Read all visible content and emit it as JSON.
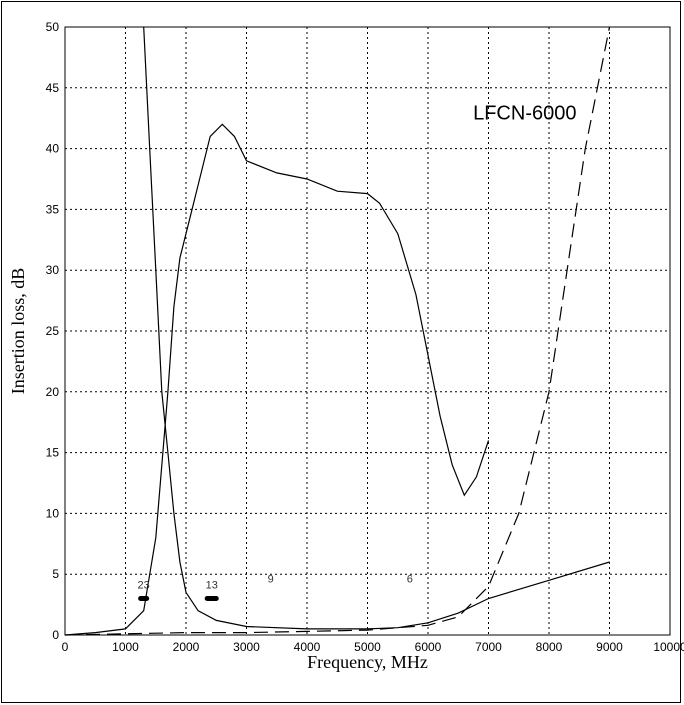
{
  "chart_data": {
    "type": "line",
    "xlabel": "Frequency, MHz",
    "ylabel": "Insertion loss, dB",
    "annotation": "LFCN-6000",
    "xlim": [
      0,
      10000
    ],
    "ylim": [
      0,
      50
    ],
    "x_ticks": [
      0,
      1000,
      2000,
      3000,
      4000,
      5000,
      6000,
      7000,
      8000,
      9000,
      10000
    ],
    "y_ticks": [
      0,
      5,
      10,
      15,
      20,
      25,
      30,
      35,
      40,
      45,
      50
    ],
    "grid": true,
    "series": [
      {
        "style": "solid",
        "points": [
          [
            1300,
            50
          ],
          [
            1400,
            40
          ],
          [
            1500,
            30
          ],
          [
            1600,
            20
          ],
          [
            1700,
            15
          ],
          [
            1800,
            10
          ],
          [
            1900,
            6
          ],
          [
            2000,
            3.5
          ],
          [
            2200,
            2
          ],
          [
            2500,
            1.2
          ],
          [
            3000,
            0.7
          ],
          [
            4000,
            0.5
          ],
          [
            5000,
            0.5
          ],
          [
            5500,
            0.6
          ],
          [
            6000,
            1
          ],
          [
            6500,
            1.8
          ],
          [
            7000,
            3
          ],
          [
            8000,
            4.5
          ],
          [
            9000,
            6
          ]
        ]
      },
      {
        "style": "solid",
        "points": [
          [
            0,
            0
          ],
          [
            500,
            0.2
          ],
          [
            1000,
            0.5
          ],
          [
            1300,
            2
          ],
          [
            1500,
            8
          ],
          [
            1700,
            20
          ],
          [
            1800,
            27
          ],
          [
            1900,
            31
          ],
          [
            2000,
            33
          ],
          [
            2200,
            37
          ],
          [
            2400,
            41
          ],
          [
            2600,
            42
          ],
          [
            2800,
            41
          ],
          [
            3000,
            39
          ],
          [
            3500,
            38
          ],
          [
            4000,
            37.5
          ],
          [
            4500,
            36.5
          ],
          [
            5000,
            36.3
          ],
          [
            5200,
            35.5
          ],
          [
            5500,
            33
          ],
          [
            5800,
            28
          ],
          [
            6000,
            23
          ],
          [
            6200,
            18
          ],
          [
            6400,
            14
          ],
          [
            6600,
            11.5
          ],
          [
            6800,
            13
          ],
          [
            7000,
            16
          ]
        ]
      },
      {
        "style": "dashed",
        "points": [
          [
            0,
            0
          ],
          [
            1000,
            0.1
          ],
          [
            2000,
            0.2
          ],
          [
            3000,
            0.2
          ],
          [
            4000,
            0.3
          ],
          [
            5000,
            0.4
          ],
          [
            6000,
            0.8
          ],
          [
            6500,
            1.5
          ],
          [
            7000,
            4
          ],
          [
            7500,
            10
          ],
          [
            8000,
            20
          ],
          [
            8300,
            30
          ],
          [
            8600,
            40
          ],
          [
            9000,
            50
          ]
        ]
      }
    ],
    "markers": [
      {
        "label": "23",
        "x_range": [
          1250,
          1350
        ],
        "y": 3
      },
      {
        "label": "13",
        "x_range": [
          2350,
          2500
        ],
        "y": 3
      },
      {
        "label": "9",
        "x": 3400,
        "y": 3.5
      },
      {
        "label": "6",
        "x": 5700,
        "y": 3.5
      }
    ]
  }
}
